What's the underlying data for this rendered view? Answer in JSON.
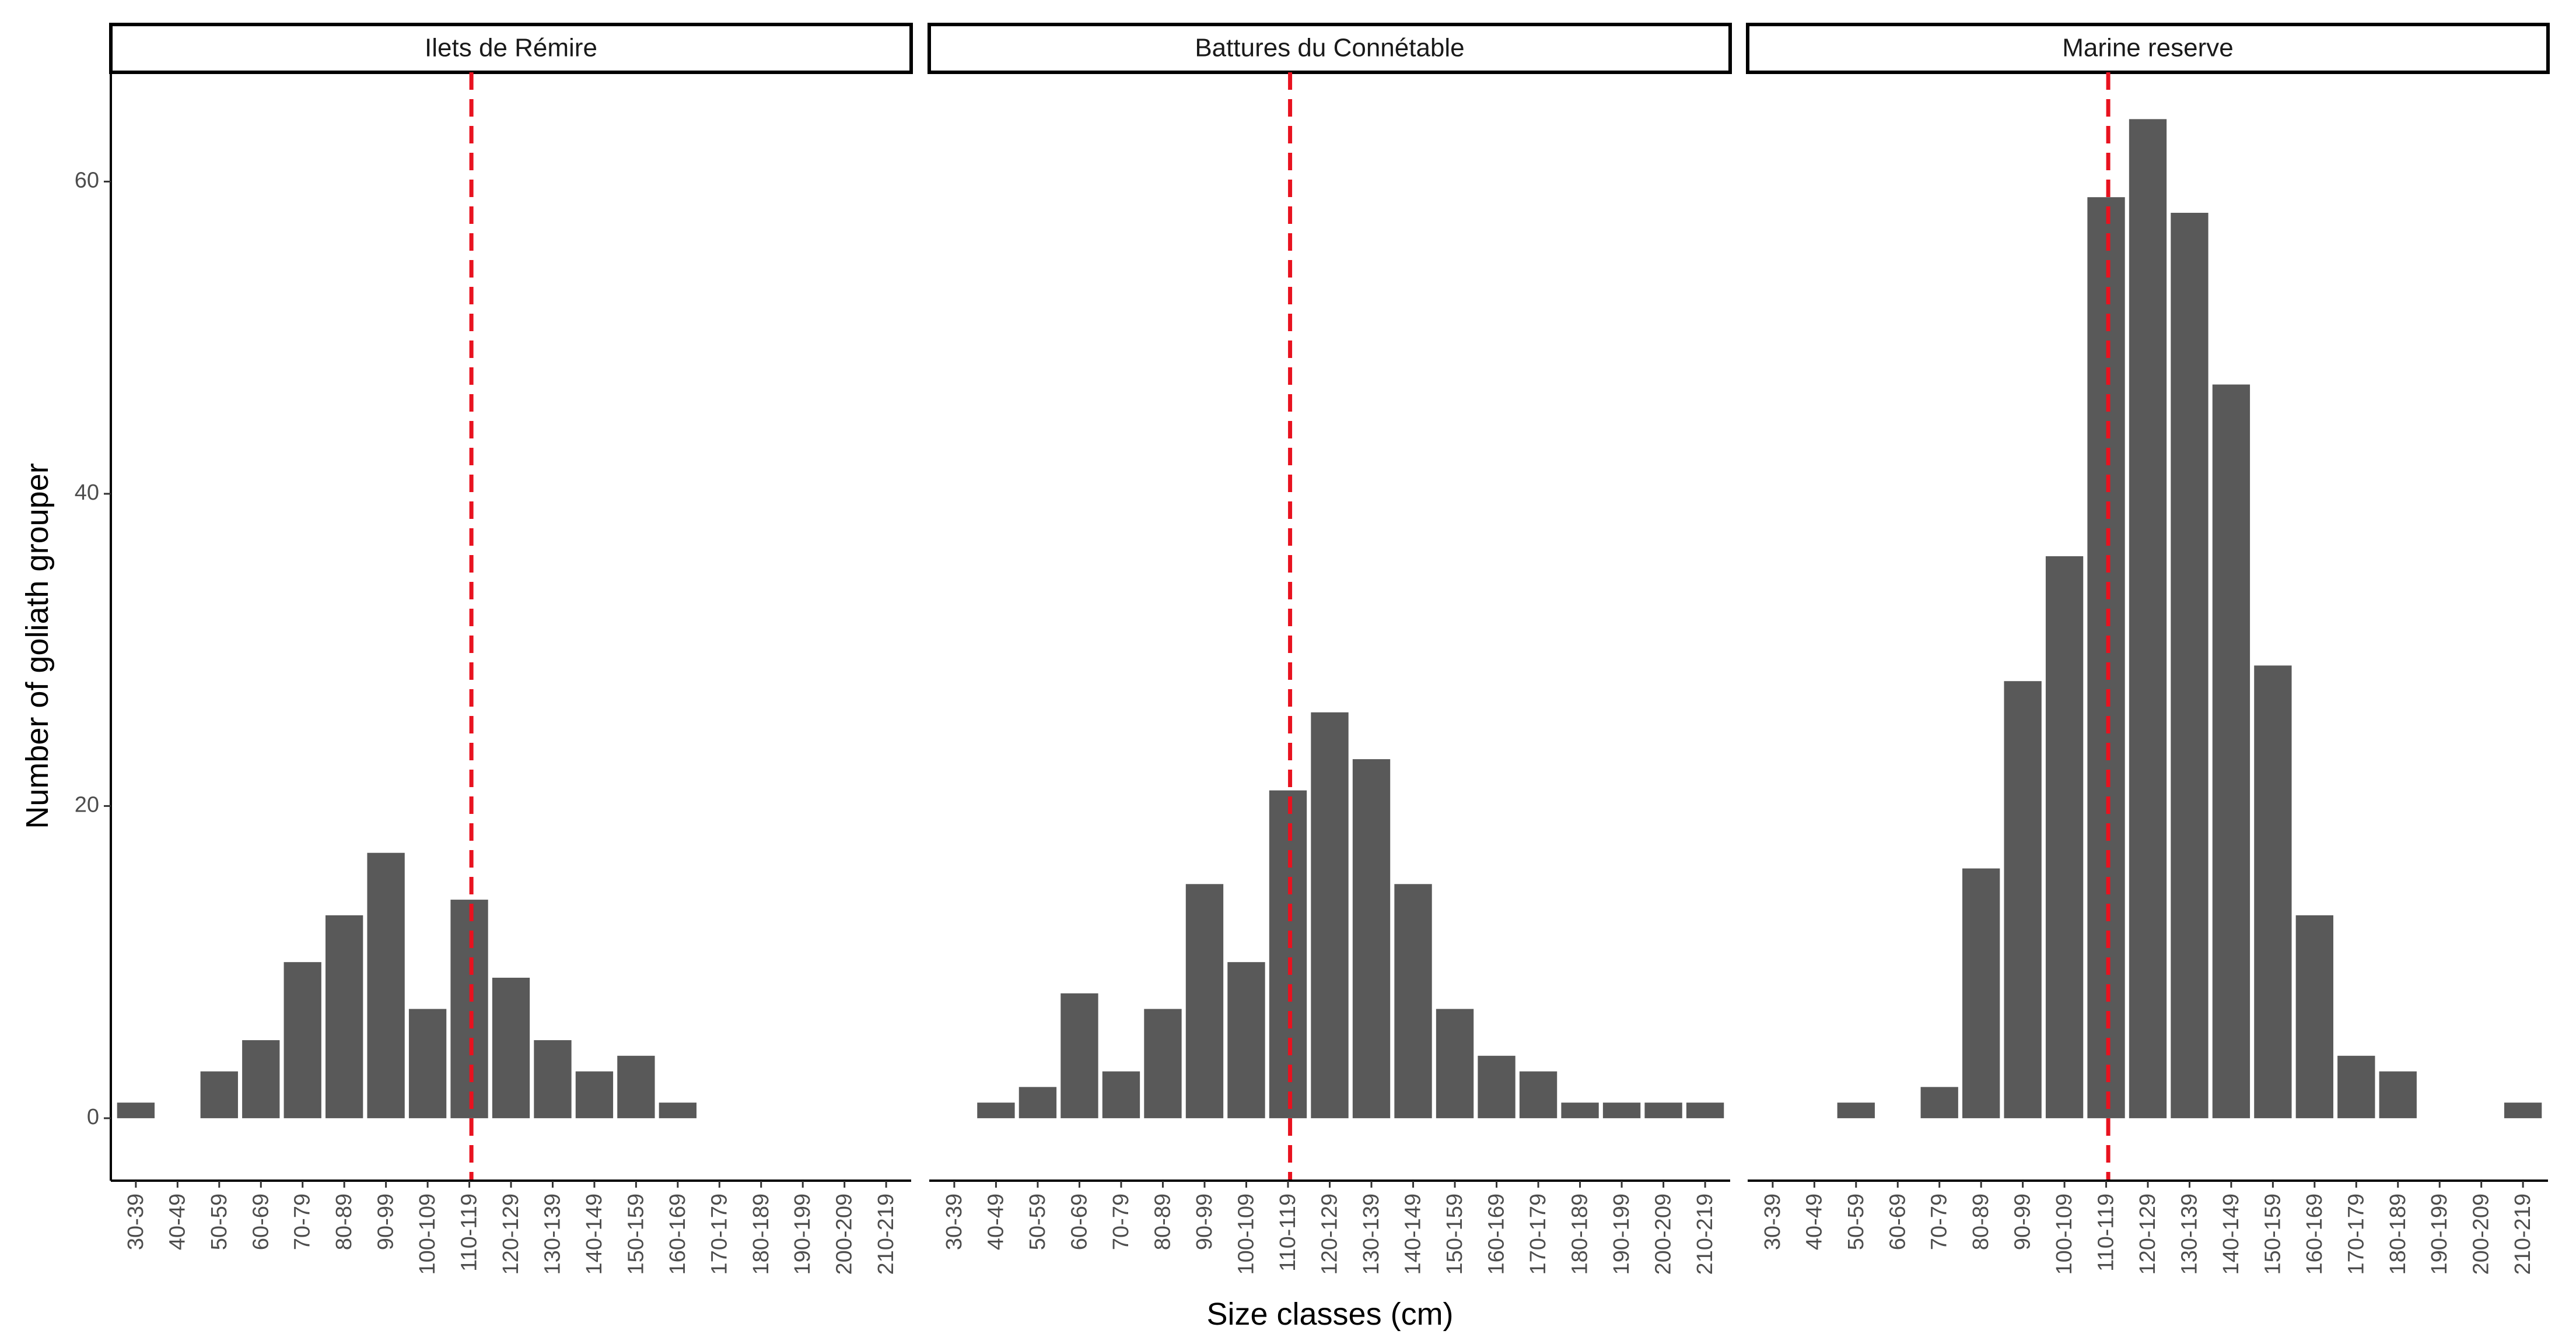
{
  "chart_data": {
    "type": "bar",
    "xlabel": "Size classes (cm)",
    "ylabel": "Number of goliath grouper",
    "ylim": [
      -4,
      67
    ],
    "yticks": [
      0,
      20,
      40,
      60
    ],
    "categories": [
      "30-39",
      "40-49",
      "50-59",
      "60-69",
      "70-79",
      "80-89",
      "90-99",
      "100-109",
      "110-119",
      "120-129",
      "130-139",
      "140-149",
      "150-159",
      "160-169",
      "170-179",
      "180-189",
      "190-199",
      "200-209",
      "210-219"
    ],
    "bar_color": "#595959",
    "reference_line_color": "#e8121f",
    "reference_line_x": 115.5,
    "panels": [
      {
        "title": "Ilets de Rémire",
        "values": [
          1,
          0,
          3,
          5,
          10,
          13,
          17,
          7,
          14,
          9,
          5,
          3,
          4,
          1,
          0,
          0,
          0,
          0,
          0
        ]
      },
      {
        "title": "Battures du Connétable",
        "values": [
          0,
          1,
          2,
          8,
          3,
          7,
          15,
          10,
          21,
          26,
          23,
          15,
          7,
          4,
          3,
          1,
          1,
          1,
          1
        ]
      },
      {
        "title": "Marine reserve",
        "values": [
          0,
          0,
          1,
          0,
          2,
          16,
          28,
          36,
          59,
          64,
          58,
          47,
          29,
          13,
          4,
          3,
          0,
          0,
          1
        ]
      }
    ]
  }
}
